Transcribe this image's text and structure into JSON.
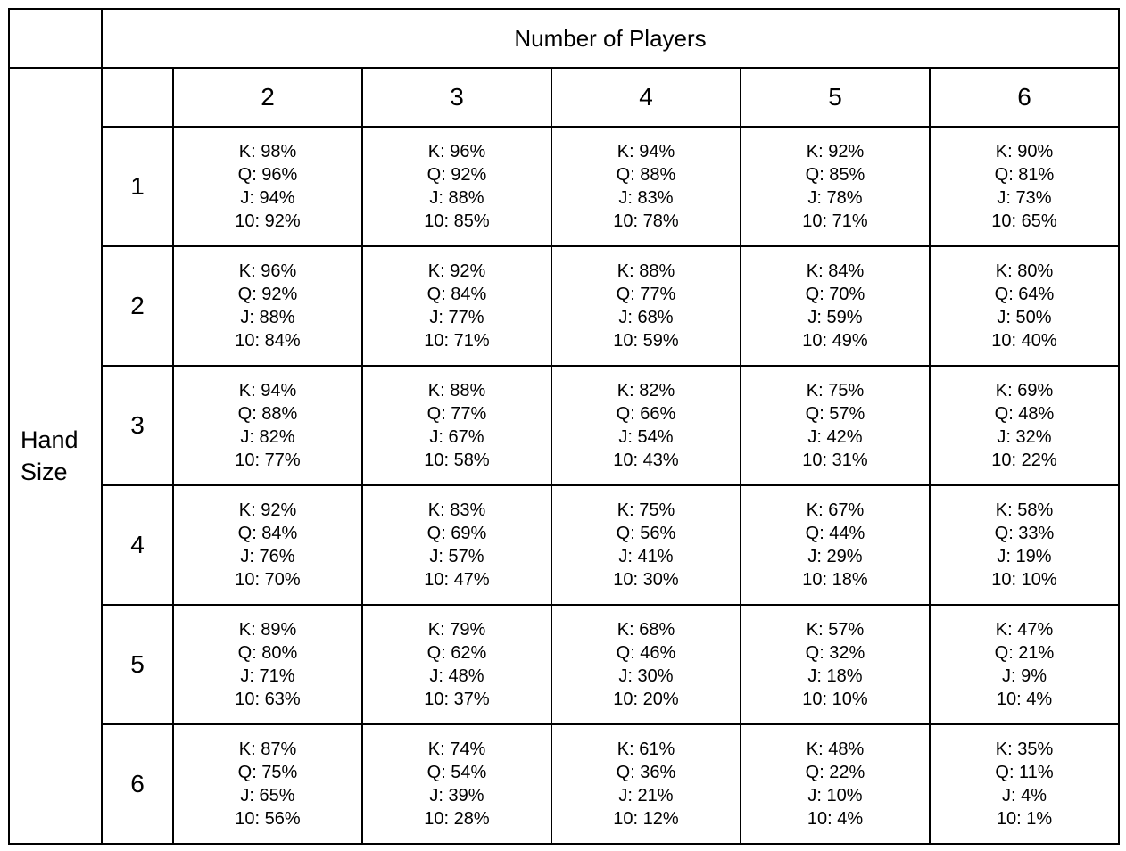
{
  "header": {
    "players_title": "Number of Players",
    "hand_size_label": [
      "Hand",
      "Size"
    ]
  },
  "players": [
    "2",
    "3",
    "4",
    "5",
    "6"
  ],
  "hand_sizes": [
    "1",
    "2",
    "3",
    "4",
    "5",
    "6"
  ],
  "rows": [
    [
      [
        "K: 98%",
        "Q: 96%",
        "J: 94%",
        "10: 92%"
      ],
      [
        "K: 96%",
        "Q: 92%",
        "J: 88%",
        "10: 85%"
      ],
      [
        "K: 94%",
        "Q: 88%",
        "J: 83%",
        "10: 78%"
      ],
      [
        "K: 92%",
        "Q: 85%",
        "J: 78%",
        "10: 71%"
      ],
      [
        "K: 90%",
        "Q: 81%",
        "J: 73%",
        "10: 65%"
      ]
    ],
    [
      [
        "K: 96%",
        "Q: 92%",
        "J: 88%",
        "10: 84%"
      ],
      [
        "K: 92%",
        "Q: 84%",
        "J: 77%",
        "10: 71%"
      ],
      [
        "K: 88%",
        "Q: 77%",
        "J: 68%",
        "10: 59%"
      ],
      [
        "K: 84%",
        "Q: 70%",
        "J: 59%",
        "10: 49%"
      ],
      [
        "K: 80%",
        "Q: 64%",
        "J: 50%",
        "10: 40%"
      ]
    ],
    [
      [
        "K: 94%",
        "Q: 88%",
        "J: 82%",
        "10: 77%"
      ],
      [
        "K: 88%",
        "Q: 77%",
        "J: 67%",
        "10: 58%"
      ],
      [
        "K: 82%",
        "Q: 66%",
        "J: 54%",
        "10: 43%"
      ],
      [
        "K: 75%",
        "Q: 57%",
        "J: 42%",
        "10: 31%"
      ],
      [
        "K: 69%",
        "Q: 48%",
        "J: 32%",
        "10: 22%"
      ]
    ],
    [
      [
        "K: 92%",
        "Q: 84%",
        "J: 76%",
        "10: 70%"
      ],
      [
        "K: 83%",
        "Q: 69%",
        "J: 57%",
        "10: 47%"
      ],
      [
        "K: 75%",
        "Q: 56%",
        "J: 41%",
        "10: 30%"
      ],
      [
        "K: 67%",
        "Q: 44%",
        "J: 29%",
        "10: 18%"
      ],
      [
        "K: 58%",
        "Q: 33%",
        "J: 19%",
        "10: 10%"
      ]
    ],
    [
      [
        "K: 89%",
        "Q: 80%",
        "J: 71%",
        "10: 63%"
      ],
      [
        "K: 79%",
        "Q: 62%",
        "J: 48%",
        "10: 37%"
      ],
      [
        "K: 68%",
        "Q: 46%",
        "J: 30%",
        "10: 20%"
      ],
      [
        "K: 57%",
        "Q: 32%",
        "J: 18%",
        "10: 10%"
      ],
      [
        "K: 47%",
        "Q: 21%",
        "J: 9%",
        "10: 4%"
      ]
    ],
    [
      [
        "K: 87%",
        "Q: 75%",
        "J: 65%",
        "10: 56%"
      ],
      [
        "K: 74%",
        "Q: 54%",
        "J: 39%",
        "10: 28%"
      ],
      [
        "K: 61%",
        "Q: 36%",
        "J: 21%",
        "10: 12%"
      ],
      [
        "K: 48%",
        "Q: 22%",
        "J: 10%",
        "10: 4%"
      ],
      [
        "K: 35%",
        "Q: 11%",
        "J: 4%",
        "10: 1%"
      ]
    ]
  ]
}
